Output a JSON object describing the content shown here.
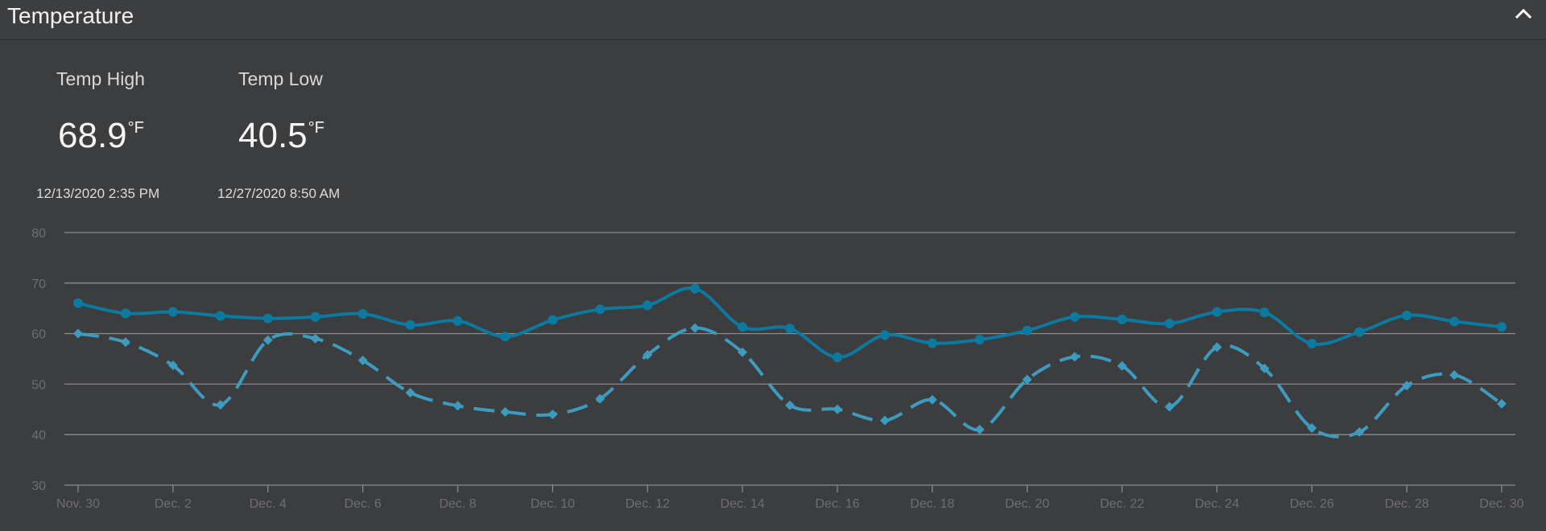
{
  "header": {
    "title": "Temperature"
  },
  "stats": {
    "high": {
      "label": "Temp High",
      "value": "68.9",
      "unit": "°F",
      "time": "12/13/2020 2:35 PM"
    },
    "low": {
      "label": "Temp Low",
      "value": "40.5",
      "unit": "°F",
      "time": "12/27/2020 8:50 AM"
    }
  },
  "colors": {
    "high_series": "#0c7aa0",
    "low_series": "#3e9bc0",
    "gridline": "#8a8b8d",
    "tick_label": "#6e6f72"
  },
  "chart_data": {
    "type": "line",
    "title": "",
    "xlabel": "",
    "ylabel": "",
    "ylim": [
      30,
      80
    ],
    "yticks": [
      30,
      40,
      50,
      60,
      70,
      80
    ],
    "xtick_labels": [
      "Nov. 30",
      "Dec. 2",
      "Dec. 4",
      "Dec. 6",
      "Dec. 8",
      "Dec. 10",
      "Dec. 12",
      "Dec. 14",
      "Dec. 16",
      "Dec. 18",
      "Dec. 20",
      "Dec. 22",
      "Dec. 24",
      "Dec. 26",
      "Dec. 28",
      "Dec. 30"
    ],
    "x": [
      "Nov. 30",
      "Dec. 1",
      "Dec. 2",
      "Dec. 3",
      "Dec. 4",
      "Dec. 5",
      "Dec. 6",
      "Dec. 7",
      "Dec. 8",
      "Dec. 9",
      "Dec. 10",
      "Dec. 11",
      "Dec. 12",
      "Dec. 13",
      "Dec. 14",
      "Dec. 15",
      "Dec. 16",
      "Dec. 17",
      "Dec. 18",
      "Dec. 19",
      "Dec. 20",
      "Dec. 21",
      "Dec. 22",
      "Dec. 23",
      "Dec. 24",
      "Dec. 25",
      "Dec. 26",
      "Dec. 27",
      "Dec. 28",
      "Dec. 29",
      "Dec. 30"
    ],
    "grid": true,
    "series": [
      {
        "style": "solid",
        "marker": "circle",
        "values": [
          66.0,
          64.0,
          64.3,
          63.5,
          63.0,
          63.3,
          63.9,
          61.7,
          62.5,
          59.4,
          62.7,
          64.8,
          65.6,
          68.9,
          61.3,
          61.0,
          55.3,
          59.7,
          58.1,
          58.8,
          60.6,
          63.3,
          62.8,
          62.0,
          64.3,
          64.2,
          58.0,
          60.3,
          63.6,
          62.4,
          61.3
        ]
      },
      {
        "style": "dashed",
        "marker": "diamond",
        "values": [
          60.0,
          58.3,
          53.7,
          45.9,
          58.7,
          59.0,
          54.7,
          48.3,
          45.7,
          44.5,
          44.0,
          47.1,
          55.8,
          61.1,
          56.3,
          45.8,
          45.0,
          42.8,
          46.9,
          41.0,
          50.9,
          55.4,
          53.6,
          45.5,
          57.3,
          53.1,
          41.3,
          40.5,
          49.7,
          51.8,
          46.1
        ]
      }
    ]
  }
}
